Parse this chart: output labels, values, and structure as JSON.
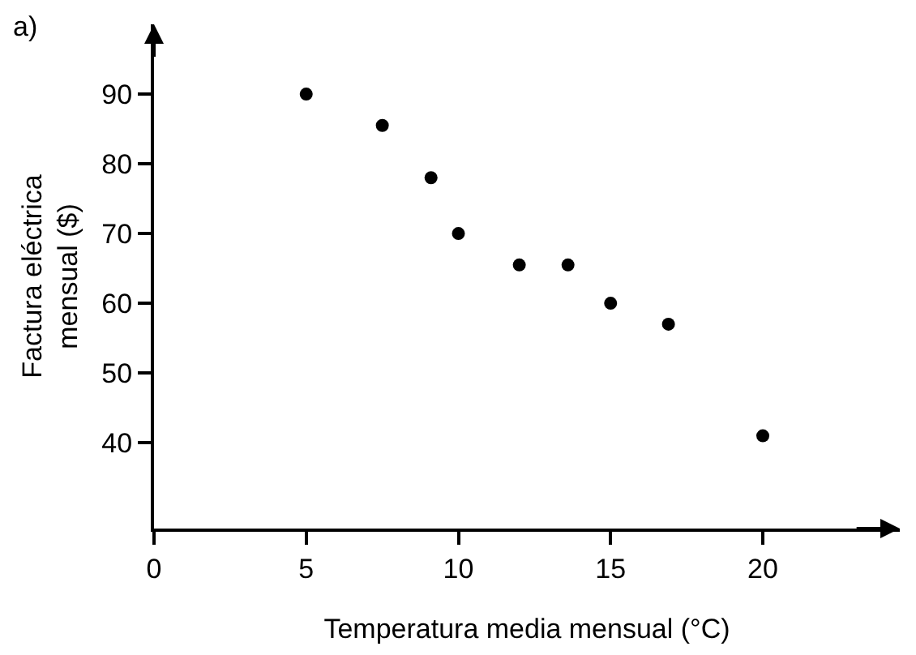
{
  "chart_data": {
    "type": "scatter",
    "xlabel": "Temperatura media mensual (°C)",
    "ylabel": "Factura eléctrica\nmensual ($)",
    "x": [
      5,
      7.5,
      9.1,
      10,
      12,
      13.6,
      15,
      16.9,
      20
    ],
    "values": [
      90,
      85.5,
      78,
      70,
      65.5,
      65.5,
      60,
      57,
      41
    ],
    "color": "#000000",
    "marker": "circle",
    "xlim": [
      0,
      24.5
    ],
    "xticks": [
      0,
      5,
      10,
      15,
      20
    ],
    "ylim": [
      27.7,
      100
    ],
    "yticks": [
      40,
      50,
      60,
      70,
      80,
      90
    ],
    "annotations": [
      "a)"
    ]
  }
}
